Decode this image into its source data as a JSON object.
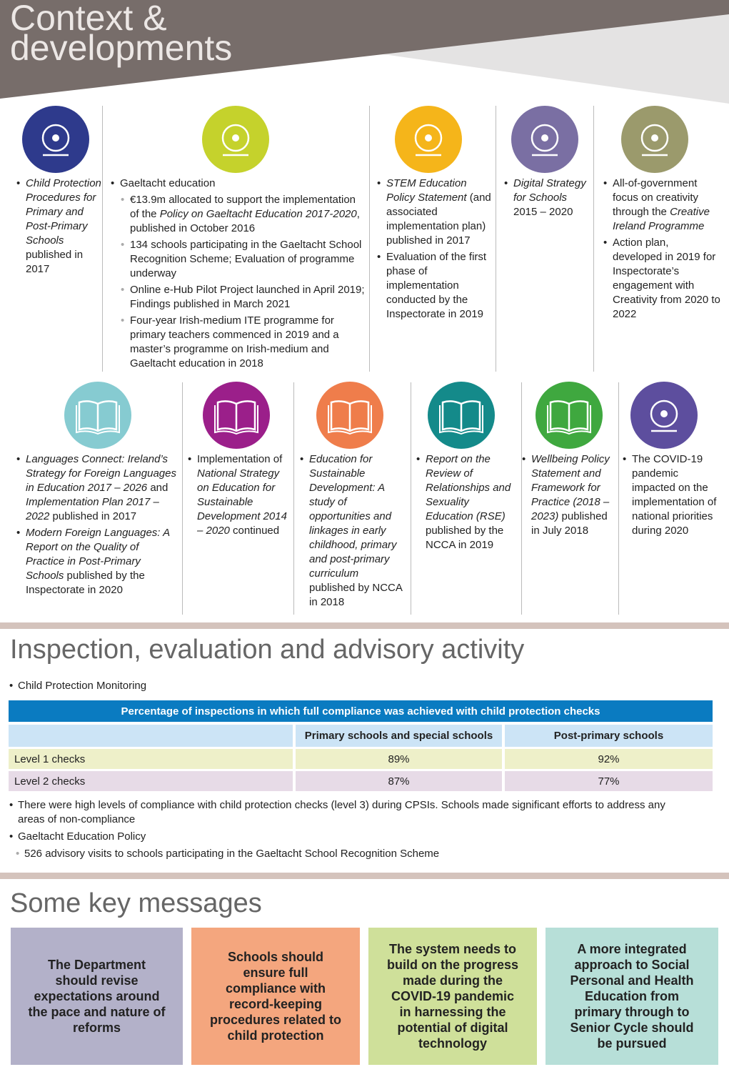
{
  "header": {
    "title": "Context & developments"
  },
  "top_row": [
    {
      "color": "#2e3a8c",
      "bullets": [
        {
          "runs": [
            {
              "text": "Child Protection Procedures for Primary and Post-Primary Schools",
              "italic": true
            },
            " published in 2017"
          ]
        }
      ]
    },
    {
      "color": "#c5d22c",
      "bullets": [
        {
          "runs": [
            "Gaeltacht education"
          ],
          "sub": [
            {
              "runs": [
                "€13.9m allocated to support the implementation of the ",
                {
                  "text": "Policy on Gaeltacht Education 2017-2020",
                  "italic": true
                },
                ", published in October 2016"
              ]
            },
            {
              "runs": [
                "134 schools participating in the Gaeltacht School Recognition Scheme; Evaluation of programme underway"
              ]
            },
            {
              "runs": [
                "Online e-Hub Pilot Project launched in April 2019; Findings published in March 2021"
              ]
            },
            {
              "runs": [
                "Four-year Irish-medium ITE programme for primary teachers commenced in 2019 and a master’s programme on Irish-medium and Gaeltacht education in 2018"
              ]
            }
          ]
        }
      ]
    },
    {
      "color": "#f5b51a",
      "bullets": [
        {
          "runs": [
            {
              "text": "STEM Education Policy Statement",
              "italic": true
            },
            " (and associated implementation plan) published in 2017"
          ]
        },
        {
          "runs": [
            "Evaluation of the first phase of implementation conducted by the Inspectorate in 2019"
          ]
        }
      ]
    },
    {
      "color": "#7a6fa3",
      "bullets": [
        {
          "runs": [
            {
              "text": "Digital Strategy for Schools",
              "italic": true
            },
            " 2015 – 2020"
          ]
        }
      ]
    },
    {
      "color": "#9b9a6c",
      "bullets": [
        {
          "runs": [
            "All-of-government focus on creativity through the ",
            {
              "text": "Creative Ireland Programme",
              "italic": true
            }
          ]
        },
        {
          "runs": [
            "Action plan, developed in 2019 for Inspectorate’s engagement with Creativity from 2020 to 2022"
          ]
        }
      ]
    }
  ],
  "bottom_row": [
    {
      "color": "#86cbd1",
      "bullets": [
        {
          "runs": [
            {
              "text": "Languages Connect: Ireland’s Strategy for Foreign Languages in Education 2017 – 2026",
              "italic": true
            },
            " and ",
            {
              "text": "Implementation Plan 2017 – 2022",
              "italic": true
            },
            " published in 2017"
          ]
        },
        {
          "runs": [
            {
              "text": "Modern Foreign Languages: A Report on the Quality of Practice in Post-Primary Schools",
              "italic": true
            },
            " published by the Inspectorate in 2020"
          ]
        }
      ]
    },
    {
      "color": "#9b1f8a",
      "bullets": [
        {
          "runs": [
            "Implementation of ",
            {
              "text": "National Strategy on Education for Sustainable Development 2014 – 2020",
              "italic": true
            },
            " continued"
          ]
        }
      ]
    },
    {
      "color": "#ef7d4b",
      "bullets": [
        {
          "runs": [
            {
              "text": "Education for Sustainable Development: A study of opportunities and linkages in early childhood, primary and post-primary curriculum",
              "italic": true
            },
            " published by NCCA in 2018"
          ]
        }
      ]
    },
    {
      "color": "#148a8a",
      "bullets": [
        {
          "runs": [
            {
              "text": "Report on the Review of Relationships and Sexuality Education (RSE)",
              "italic": true
            },
            " published by the NCCA in 2019"
          ]
        }
      ]
    },
    {
      "color": "#3fa83f",
      "bullets": [
        {
          "runs": [
            {
              "text": "Wellbeing Policy Statement and Framework for Practice (2018 – 2023)",
              "italic": true
            },
            " published in July 2018"
          ]
        }
      ]
    },
    {
      "color": "#5d4e9e",
      "bullets": [
        {
          "runs": [
            "The COVID-19 pandemic impacted on the implementation of national priorities during 2020"
          ]
        }
      ]
    }
  ],
  "inspection": {
    "title": "Inspection, evaluation and advisory activity",
    "intro": "Child Protection Monitoring",
    "table": {
      "caption": "Percentage of inspections in which full compliance was achieved with child protection checks",
      "headers": [
        "Primary schools and special schools",
        "Post-primary schools"
      ],
      "rows": [
        [
          "Level 1 checks",
          "89%",
          "92%"
        ],
        [
          "Level 2 checks",
          "87%",
          "77%"
        ]
      ]
    },
    "bullets": [
      {
        "text": "There were high levels of compliance with child protection checks (level 3) during CPSIs. Schools made significant efforts to address any areas of non-compliance"
      },
      {
        "text": "Gaeltacht Education Policy",
        "sub": [
          "526 advisory visits to schools participating in the Gaeltacht School Recognition Scheme"
        ]
      }
    ]
  },
  "key_messages": {
    "title": "Some key messages",
    "boxes": [
      {
        "text": "The Department should revise expectations around the pace and nature of reforms",
        "color": "#b3b1c9"
      },
      {
        "text": "Schools should ensure full compliance with record-keeping procedures related to child protection",
        "color": "#f4a67e"
      },
      {
        "text": "The system needs to build on the progress made during the COVID-19 pandemic in harnessing the potential of digital technology",
        "color": "#cfe09a"
      },
      {
        "text": "A more integrated approach to Social Personal and Health Education from primary through to Senior Cycle should be pursued",
        "color": "#b7dfd8"
      }
    ]
  }
}
